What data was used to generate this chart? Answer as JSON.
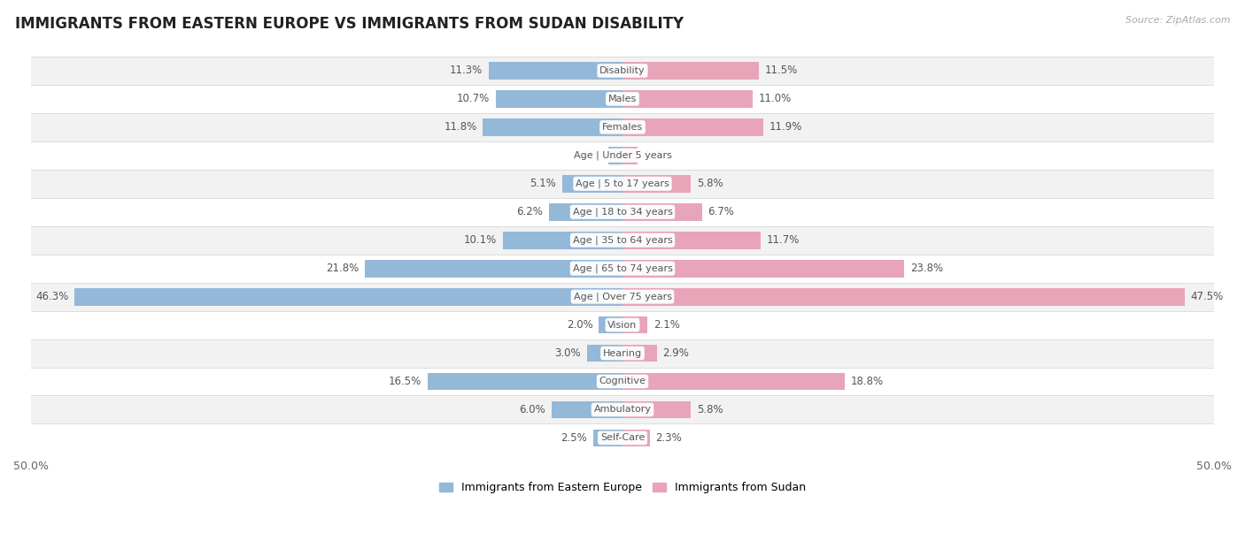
{
  "title": "IMMIGRANTS FROM EASTERN EUROPE VS IMMIGRANTS FROM SUDAN DISABILITY",
  "source": "Source: ZipAtlas.com",
  "categories": [
    "Disability",
    "Males",
    "Females",
    "Age | Under 5 years",
    "Age | 5 to 17 years",
    "Age | 18 to 34 years",
    "Age | 35 to 64 years",
    "Age | 65 to 74 years",
    "Age | Over 75 years",
    "Vision",
    "Hearing",
    "Cognitive",
    "Ambulatory",
    "Self-Care"
  ],
  "eastern_europe": [
    11.3,
    10.7,
    11.8,
    1.2,
    5.1,
    6.2,
    10.1,
    21.8,
    46.3,
    2.0,
    3.0,
    16.5,
    6.0,
    2.5
  ],
  "sudan": [
    11.5,
    11.0,
    11.9,
    1.3,
    5.8,
    6.7,
    11.7,
    23.8,
    47.5,
    2.1,
    2.9,
    18.8,
    5.8,
    2.3
  ],
  "blue_color": "#94b8d8",
  "pink_color": "#e8a4b8",
  "bar_height": 0.62,
  "max_val": 50.0,
  "row_color_even": "#f2f2f2",
  "row_color_odd": "#ffffff",
  "title_fontsize": 12,
  "value_fontsize": 8.5,
  "cat_fontsize": 8.0,
  "legend_labels": [
    "Immigrants from Eastern Europe",
    "Immigrants from Sudan"
  ]
}
